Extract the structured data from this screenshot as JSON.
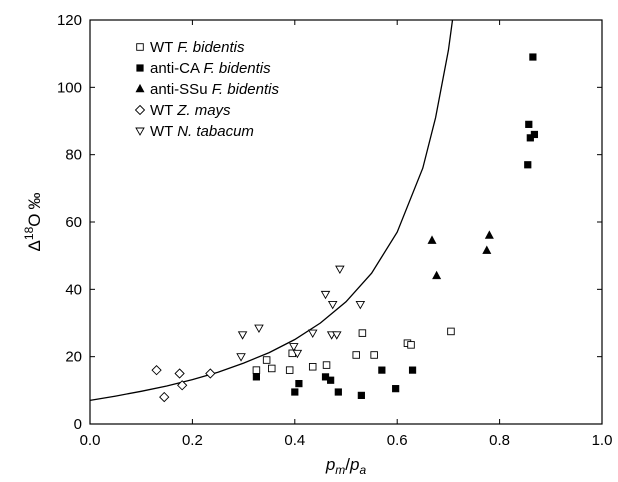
{
  "chart_data": {
    "type": "scatter",
    "title": "",
    "xlabel": {
      "main": "p",
      "sub1": "m",
      "slash": "/",
      "main2": "p",
      "sub2": "a"
    },
    "ylabel": {
      "delta": "Δ",
      "sup": "18",
      "element": "O",
      "unit": "‰"
    },
    "xlim": [
      0.0,
      1.0
    ],
    "ylim": [
      0,
      120
    ],
    "x_ticks": [
      "0.0",
      "0.2",
      "0.4",
      "0.6",
      "0.8",
      "1.0"
    ],
    "y_ticks": [
      "0",
      "20",
      "40",
      "60",
      "80",
      "100",
      "120"
    ],
    "grid": false,
    "legend_position": "top-left",
    "legend": [
      {
        "prefix": "WT ",
        "species": "F. bidentis"
      },
      {
        "prefix": "anti-CA ",
        "species": "F. bidentis"
      },
      {
        "prefix": "anti-SSu ",
        "species": "F. bidentis"
      },
      {
        "prefix": "WT ",
        "species": "Z. mays"
      },
      {
        "prefix": "WT ",
        "species": "N. tabacum"
      }
    ],
    "series": [
      {
        "marker": "open-square",
        "points": [
          [
            0.325,
            16.0
          ],
          [
            0.345,
            19.0
          ],
          [
            0.355,
            16.5
          ],
          [
            0.39,
            16.0
          ],
          [
            0.395,
            21.0
          ],
          [
            0.435,
            17.0
          ],
          [
            0.462,
            17.5
          ],
          [
            0.52,
            20.5
          ],
          [
            0.532,
            27.0
          ],
          [
            0.555,
            20.5
          ],
          [
            0.62,
            24.0
          ],
          [
            0.627,
            23.5
          ],
          [
            0.705,
            27.5
          ]
        ]
      },
      {
        "marker": "filled-square",
        "points": [
          [
            0.325,
            14.0
          ],
          [
            0.4,
            9.5
          ],
          [
            0.408,
            12.0
          ],
          [
            0.46,
            14.0
          ],
          [
            0.47,
            13.0
          ],
          [
            0.485,
            9.5
          ],
          [
            0.53,
            8.5
          ],
          [
            0.57,
            16.0
          ],
          [
            0.597,
            10.5
          ],
          [
            0.63,
            16.0
          ],
          [
            0.855,
            77.0
          ],
          [
            0.857,
            89.0
          ],
          [
            0.86,
            85.0
          ],
          [
            0.865,
            109.0
          ],
          [
            0.868,
            86.0
          ]
        ]
      },
      {
        "marker": "filled-triangle-up",
        "points": [
          [
            0.668,
            54.5
          ],
          [
            0.677,
            44.0
          ],
          [
            0.775,
            51.5
          ],
          [
            0.78,
            56.0
          ]
        ]
      },
      {
        "marker": "open-diamond",
        "points": [
          [
            0.13,
            16.0
          ],
          [
            0.145,
            8.0
          ],
          [
            0.175,
            15.0
          ],
          [
            0.18,
            11.5
          ],
          [
            0.235,
            15.0
          ]
        ]
      },
      {
        "marker": "open-triangle-down",
        "points": [
          [
            0.295,
            20.0
          ],
          [
            0.298,
            26.5
          ],
          [
            0.33,
            28.5
          ],
          [
            0.398,
            23.0
          ],
          [
            0.405,
            21.0
          ],
          [
            0.435,
            27.0
          ],
          [
            0.46,
            38.5
          ],
          [
            0.472,
            26.5
          ],
          [
            0.474,
            35.5
          ],
          [
            0.482,
            26.5
          ],
          [
            0.488,
            46.0
          ],
          [
            0.528,
            35.5
          ]
        ]
      }
    ],
    "model_curve": {
      "type": "line",
      "points": [
        [
          0.0,
          7.0
        ],
        [
          0.05,
          8.3
        ],
        [
          0.1,
          9.7
        ],
        [
          0.15,
          11.3
        ],
        [
          0.2,
          13.2
        ],
        [
          0.25,
          15.4
        ],
        [
          0.3,
          18.1
        ],
        [
          0.35,
          21.2
        ],
        [
          0.4,
          25.1
        ],
        [
          0.45,
          30.0
        ],
        [
          0.5,
          36.3
        ],
        [
          0.55,
          44.8
        ],
        [
          0.6,
          57.0
        ],
        [
          0.65,
          76.0
        ],
        [
          0.675,
          91.0
        ],
        [
          0.7,
          111.0
        ],
        [
          0.708,
          120.0
        ]
      ]
    }
  }
}
